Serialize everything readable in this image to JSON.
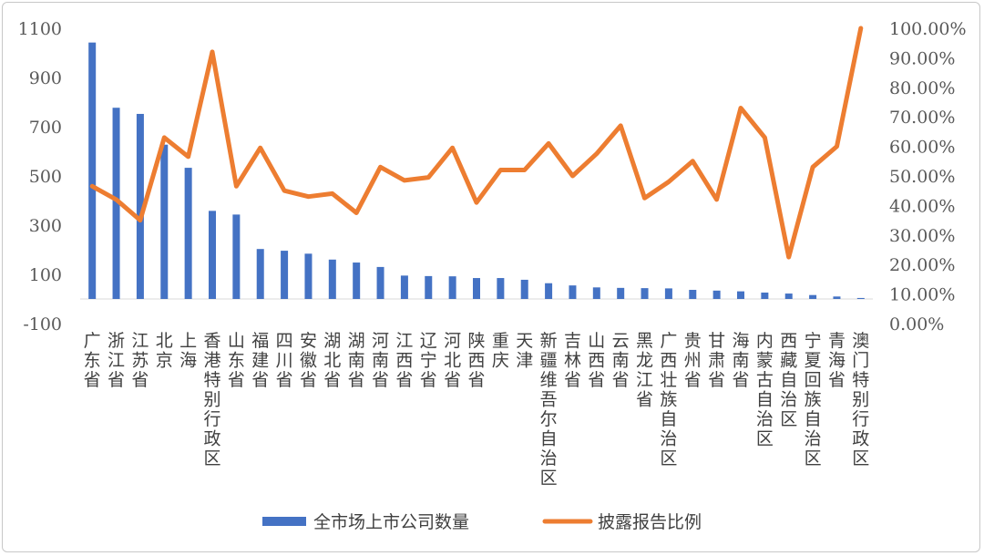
{
  "chart_data": {
    "type": "bar",
    "title": "",
    "categories": [
      "广东省",
      "浙江省",
      "江苏省",
      "北京",
      "上海",
      "香港特别行政区",
      "山东省",
      "福建省",
      "四川省",
      "安徽省",
      "湖北省",
      "湖南省",
      "河南省",
      "江西省",
      "辽宁省",
      "河北省",
      "陕西省",
      "重庆",
      "天津",
      "新疆维吾尔自治区",
      "吉林省",
      "山西省",
      "云南省",
      "黑龙江省",
      "广西壮族自治区",
      "贵州省",
      "甘肃省",
      "海南省",
      "内蒙古自治区",
      "西藏自治区",
      "宁夏回族自治区",
      "青海省",
      "澳门特别行政区"
    ],
    "series": [
      {
        "name": "全市场上市公司数量",
        "axis": "left",
        "kind": "bar",
        "color": "#4472C4",
        "values": [
          1042,
          777,
          752,
          627,
          533,
          358,
          343,
          203,
          196,
          184,
          160,
          148,
          130,
          95,
          93,
          92,
          85,
          85,
          78,
          64,
          55,
          47,
          45,
          44,
          43,
          37,
          34,
          31,
          26,
          22,
          16,
          10,
          4
        ]
      },
      {
        "name": "披露报告比例",
        "axis": "right",
        "kind": "line",
        "color": "#ED7D31",
        "values": [
          46.5,
          42,
          35,
          63,
          56.5,
          92,
          46.5,
          59.5,
          45,
          43,
          44,
          37.5,
          53,
          48.5,
          49.5,
          59.5,
          41,
          52,
          52,
          61,
          50,
          57.5,
          67,
          42.5,
          48,
          55,
          42,
          73,
          63,
          22.5,
          53,
          60,
          100
        ]
      }
    ],
    "y_left": {
      "ylim": [
        -100,
        1100
      ],
      "ticks": [
        "-100",
        "100",
        "300",
        "500",
        "700",
        "900",
        "1100"
      ]
    },
    "y_right": {
      "ylim": [
        0,
        100
      ],
      "ticks": [
        "0.00%",
        "10.00%",
        "20.00%",
        "30.00%",
        "40.00%",
        "50.00%",
        "60.00%",
        "70.00%",
        "80.00%",
        "90.00%",
        "100.00%"
      ]
    },
    "grid": false,
    "legend": "bottom"
  }
}
